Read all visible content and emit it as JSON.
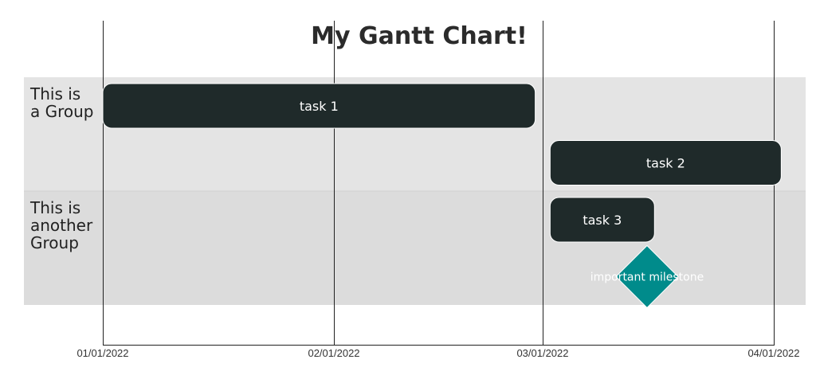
{
  "chart_data": {
    "type": "gantt",
    "title": "My Gantt Chart!",
    "x_ticks": [
      "01/01/2022",
      "02/01/2022",
      "03/01/2022",
      "04/01/2022"
    ],
    "xlim": [
      "01/01/2022",
      "04/01/2022"
    ],
    "grid": "vertical lines at each tick",
    "colors": {
      "group_band_1": "#e4e4e4",
      "group_band_2": "#dcdcdc",
      "task": "#1f2a2a",
      "milestone": "#008b8b",
      "gridline": "#222222"
    },
    "groups": [
      {
        "label_lines": [
          "This is",
          "a Group"
        ],
        "rows": 2
      },
      {
        "label_lines": [
          "This is",
          "another",
          "Group"
        ],
        "rows": 2
      }
    ],
    "tasks": [
      {
        "label": "task 1",
        "group": 0,
        "row": 0,
        "start": "01/01/2022",
        "end": "02/28/2022"
      },
      {
        "label": "task 2",
        "group": 0,
        "row": 1,
        "start": "03/02/2022",
        "end": "04/02/2022"
      },
      {
        "label": "task 3",
        "group": 1,
        "row": 0,
        "start": "03/02/2022",
        "end": "03/16/2022"
      }
    ],
    "milestones": [
      {
        "label": "important milestone",
        "group": 1,
        "row": 1,
        "date": "03/15/2022"
      }
    ]
  }
}
